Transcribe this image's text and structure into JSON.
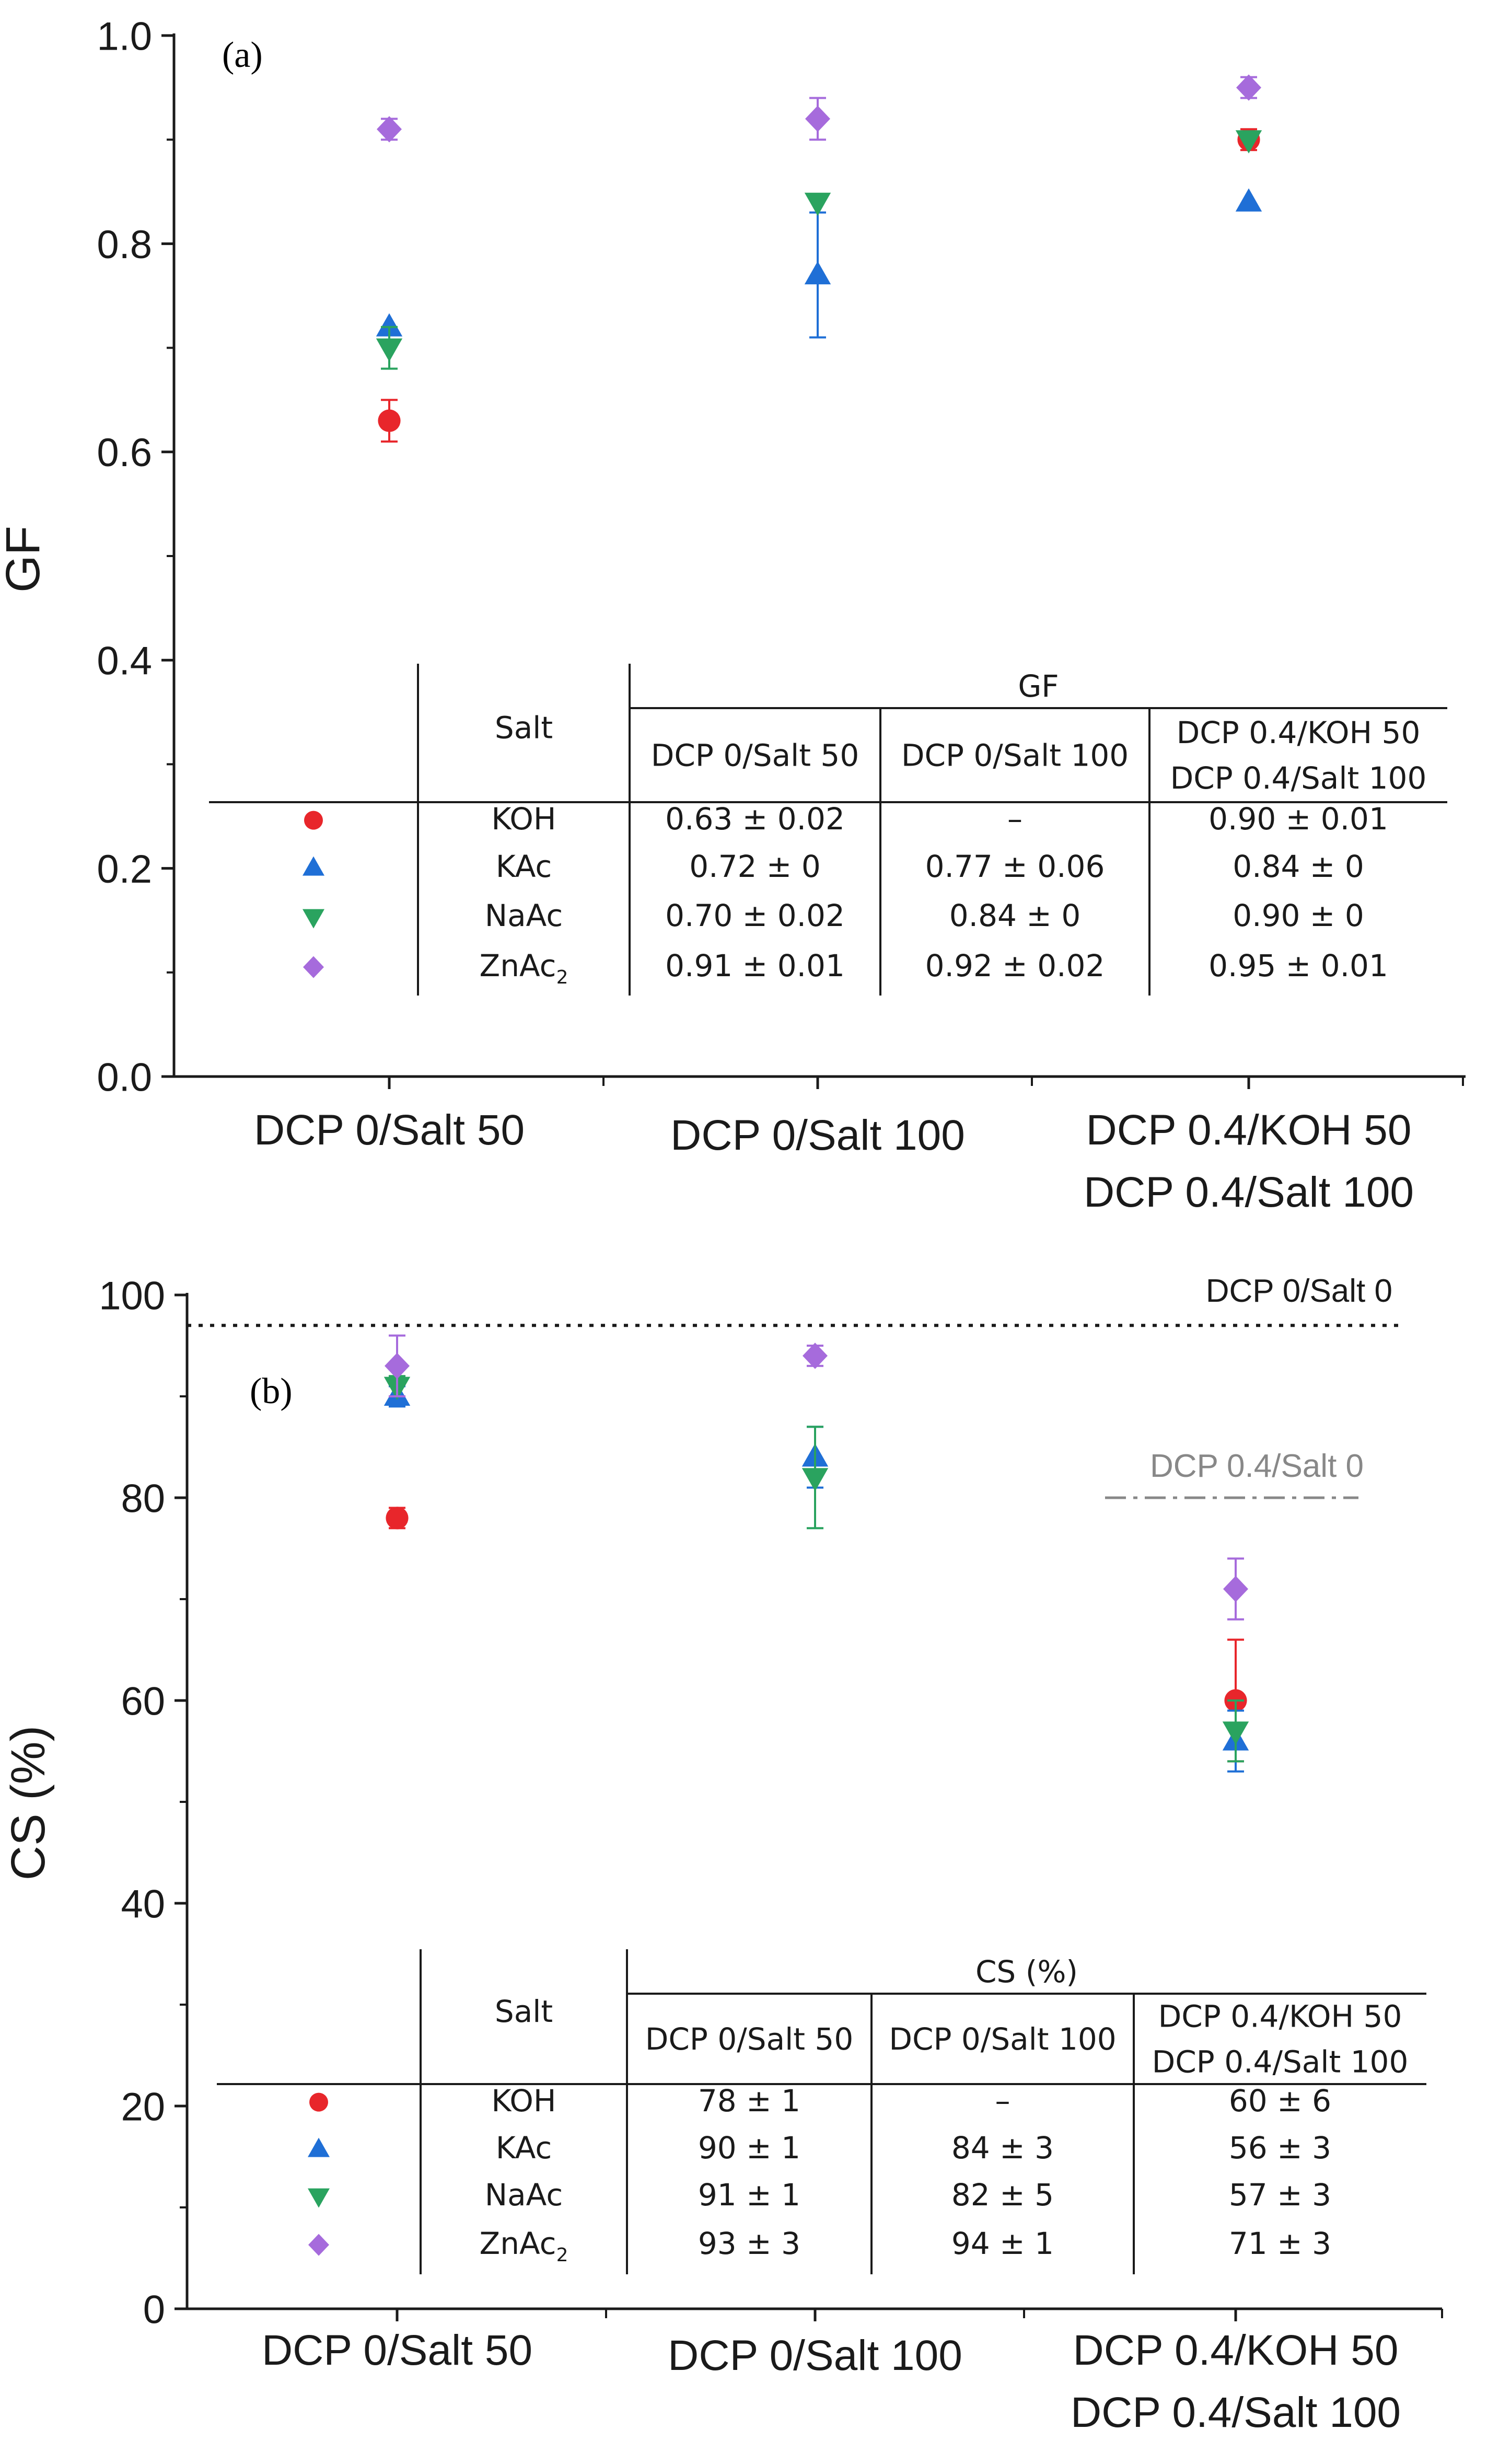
{
  "colors": {
    "KOH": "#e8262b",
    "KAc": "#1f6fd6",
    "NaAc": "#2aa35f",
    "ZnAc2": "#a66bdc",
    "axis": "#1a1a1a",
    "ref_line_gray": "#888888"
  },
  "chart_data": [
    {
      "type": "scatter",
      "panel_label": "(a)",
      "ylabel": "GF",
      "xlabel": "",
      "ylim": [
        0.0,
        1.0
      ],
      "yticks": [
        "0.0",
        "0.2",
        "0.4",
        "0.6",
        "0.8",
        "1.0"
      ],
      "categories": [
        "DCP 0/Salt 50",
        "DCP 0/Salt 100",
        "DCP 0.4/KOH 50\nDCP 0.4/Salt 100"
      ],
      "series": [
        {
          "name": "KOH",
          "marker": "circle",
          "values": [
            0.63,
            null,
            0.9
          ],
          "errors": [
            0.02,
            null,
            0.01
          ]
        },
        {
          "name": "KAc",
          "marker": "triangle-up",
          "values": [
            0.72,
            0.77,
            0.84
          ],
          "errors": [
            0,
            0.06,
            0
          ]
        },
        {
          "name": "NaAc",
          "marker": "triangle-down",
          "values": [
            0.7,
            0.84,
            0.9
          ],
          "errors": [
            0.02,
            0,
            0
          ]
        },
        {
          "name": "ZnAc2",
          "marker": "diamond",
          "values": [
            0.91,
            0.92,
            0.95
          ],
          "errors": [
            0.01,
            0.02,
            0.01
          ]
        }
      ],
      "table": {
        "row_header": "Salt",
        "group_header": "GF",
        "col_headers": [
          "DCP 0/Salt 50",
          "DCP 0/Salt 100",
          "DCP 0.4/KOH 50\nDCP 0.4/Salt 100"
        ],
        "rows": [
          {
            "salt": "KOH",
            "cells": [
              "0.63 ± 0.02",
              "–",
              "0.90 ± 0.01"
            ]
          },
          {
            "salt": "KAc",
            "cells": [
              "0.72 ± 0",
              "0.77 ± 0.06",
              "0.84 ± 0"
            ]
          },
          {
            "salt": "NaAc",
            "cells": [
              "0.70 ± 0.02",
              "0.84 ± 0",
              "0.90 ± 0"
            ]
          },
          {
            "salt": "ZnAc2",
            "cells": [
              "0.91 ± 0.01",
              "0.92 ± 0.02",
              "0.95 ± 0.01"
            ]
          }
        ]
      }
    },
    {
      "type": "scatter",
      "panel_label": "(b)",
      "ylabel": "CS (%)",
      "xlabel": "",
      "ylim": [
        0,
        100
      ],
      "yticks": [
        "0",
        "20",
        "40",
        "60",
        "80",
        "100"
      ],
      "categories": [
        "DCP 0/Salt 50",
        "DCP 0/Salt 100",
        "DCP 0.4/KOH 50\nDCP 0.4/Salt 100"
      ],
      "reference_lines": [
        {
          "label": "DCP 0/Salt 0",
          "value": 97,
          "style": "dotted"
        },
        {
          "label": "DCP 0.4/Salt 0",
          "value": 80,
          "style": "dash-dot"
        }
      ],
      "series": [
        {
          "name": "KOH",
          "marker": "circle",
          "values": [
            78,
            null,
            60
          ],
          "errors": [
            1,
            null,
            6
          ]
        },
        {
          "name": "KAc",
          "marker": "triangle-up",
          "values": [
            90,
            84,
            56
          ],
          "errors": [
            1,
            3,
            3
          ]
        },
        {
          "name": "NaAc",
          "marker": "triangle-down",
          "values": [
            91,
            82,
            57
          ],
          "errors": [
            1,
            5,
            3
          ]
        },
        {
          "name": "ZnAc2",
          "marker": "diamond",
          "values": [
            93,
            94,
            71
          ],
          "errors": [
            3,
            1,
            3
          ]
        }
      ],
      "table": {
        "row_header": "Salt",
        "group_header": "CS (%)",
        "col_headers": [
          "DCP 0/Salt 50",
          "DCP 0/Salt 100",
          "DCP 0.4/KOH 50\nDCP 0.4/Salt 100"
        ],
        "rows": [
          {
            "salt": "KOH",
            "cells": [
              "78 ± 1",
              "–",
              "60 ± 6"
            ]
          },
          {
            "salt": "KAc",
            "cells": [
              "90 ± 1",
              "84 ± 3",
              "56 ± 3"
            ]
          },
          {
            "salt": "NaAc",
            "cells": [
              "91 ± 1",
              "82 ± 5",
              "57 ± 3"
            ]
          },
          {
            "salt": "ZnAc2",
            "cells": [
              "93 ± 3",
              "94 ± 1",
              "71 ± 3"
            ]
          }
        ]
      }
    }
  ]
}
